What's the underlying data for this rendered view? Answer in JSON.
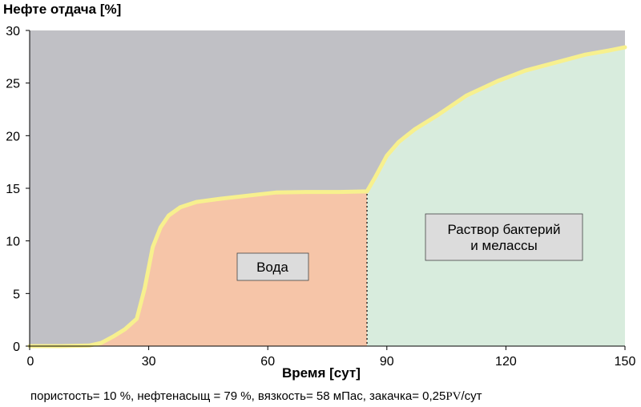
{
  "chart_data": {
    "type": "area",
    "ylabel": "Нефте отдача [%]",
    "xlabel": "Время [сут]",
    "xlim": [
      0,
      150
    ],
    "ylim": [
      0,
      30
    ],
    "xticks": [
      "0",
      "30",
      "60",
      "90",
      "120",
      "150"
    ],
    "yticks": [
      "0",
      "5",
      "10",
      "15",
      "20",
      "25",
      "30"
    ],
    "grid": false,
    "switch_x": 85,
    "series": [
      {
        "x": [
          0,
          8,
          15,
          18,
          21,
          24,
          27,
          29,
          31,
          33,
          35,
          38,
          42,
          48,
          55,
          62,
          70,
          78,
          85,
          87,
          90,
          93,
          97,
          103,
          110,
          118,
          125,
          133,
          140,
          146,
          150
        ],
        "y": [
          0,
          0,
          0.05,
          0.3,
          0.9,
          1.6,
          2.6,
          5.5,
          9.4,
          11.3,
          12.4,
          13.2,
          13.7,
          14.0,
          14.3,
          14.6,
          14.65,
          14.65,
          14.7,
          16.0,
          18.1,
          19.4,
          20.6,
          22.0,
          23.8,
          25.2,
          26.2,
          27.0,
          27.7,
          28.1,
          28.4
        ]
      }
    ],
    "regions": [
      {
        "label": "Вода",
        "fill": "#f6c5a8"
      },
      {
        "label_line1": "Раствор бактерий",
        "label_line2": "и мелассы",
        "fill": "#d8ecdd"
      }
    ],
    "colors": {
      "background": "#c0c0c5",
      "curve": "#f7f08e",
      "label_box": "#dcdcdc"
    }
  },
  "footnote": {
    "text": "пористость= 10 %, нефтенасыщ = 79 %, вязкость= 58 мПас, закачка= 0,25",
    "pv": "PV",
    "unit": "/сут"
  }
}
